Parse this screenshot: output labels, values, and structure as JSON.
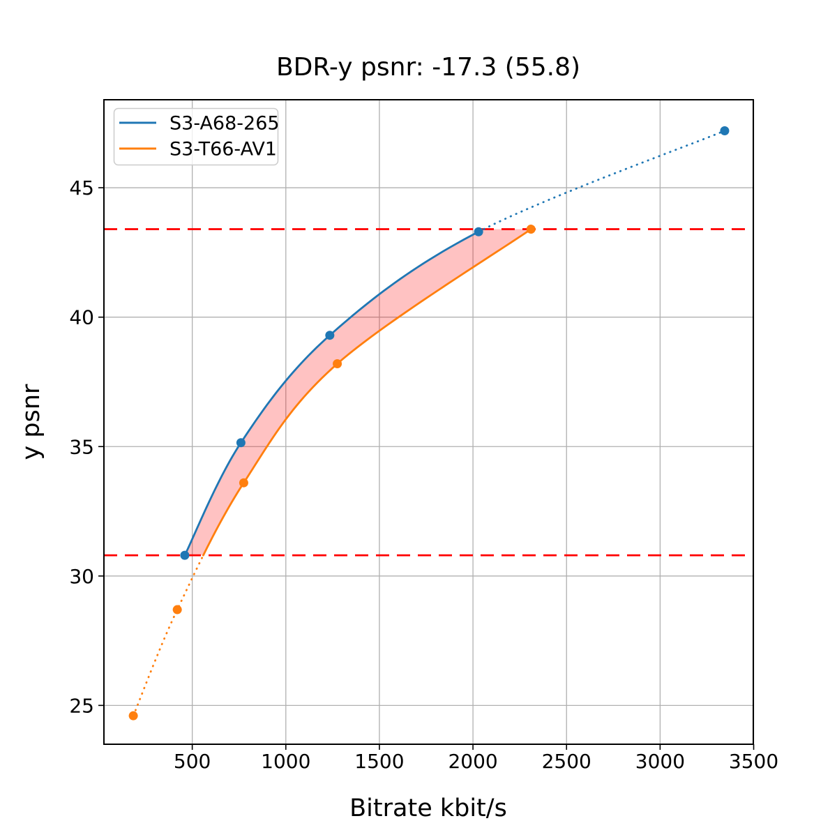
{
  "chart_data": {
    "type": "line",
    "title": "BDR-y psnr: -17.3 (55.8)",
    "xlabel": "Bitrate kbit/s",
    "ylabel": "y psnr",
    "xlim": [
      28,
      3498
    ],
    "ylim": [
      23.5,
      48.4
    ],
    "xticks": [
      500,
      1000,
      1500,
      2000,
      2500,
      3000,
      3500
    ],
    "yticks": [
      25,
      30,
      35,
      40,
      45
    ],
    "grid": true,
    "grid_color": "#b0b0b0",
    "legend_position": "upper-left",
    "series": [
      {
        "name": "S3-A68-265",
        "color": "#1f77b4",
        "points": [
          [
            460,
            30.8
          ],
          [
            760,
            35.15
          ],
          [
            1235,
            39.3
          ],
          [
            2030,
            43.3
          ],
          [
            3345,
            47.2
          ]
        ],
        "solid_point_range": [
          0,
          3
        ],
        "dotted_point_range": [
          3,
          4
        ],
        "marker": "circle"
      },
      {
        "name": "S3-T66-AV1",
        "color": "#ff7f0e",
        "points": [
          [
            185,
            24.6
          ],
          [
            420,
            28.7
          ],
          [
            775,
            33.6
          ],
          [
            1275,
            38.2
          ],
          [
            2310,
            43.4
          ]
        ],
        "dotted_below_y": 30.8,
        "marker": "circle"
      }
    ],
    "hlines": [
      {
        "y": 43.4,
        "color": "#ff0000",
        "style": "dashed"
      },
      {
        "y": 30.8,
        "color": "#ff0000",
        "style": "dashed"
      }
    ],
    "fill_between": {
      "color": "rgba(255, 0, 0, 0.24)",
      "y_range": [
        30.8,
        43.4
      ]
    }
  }
}
